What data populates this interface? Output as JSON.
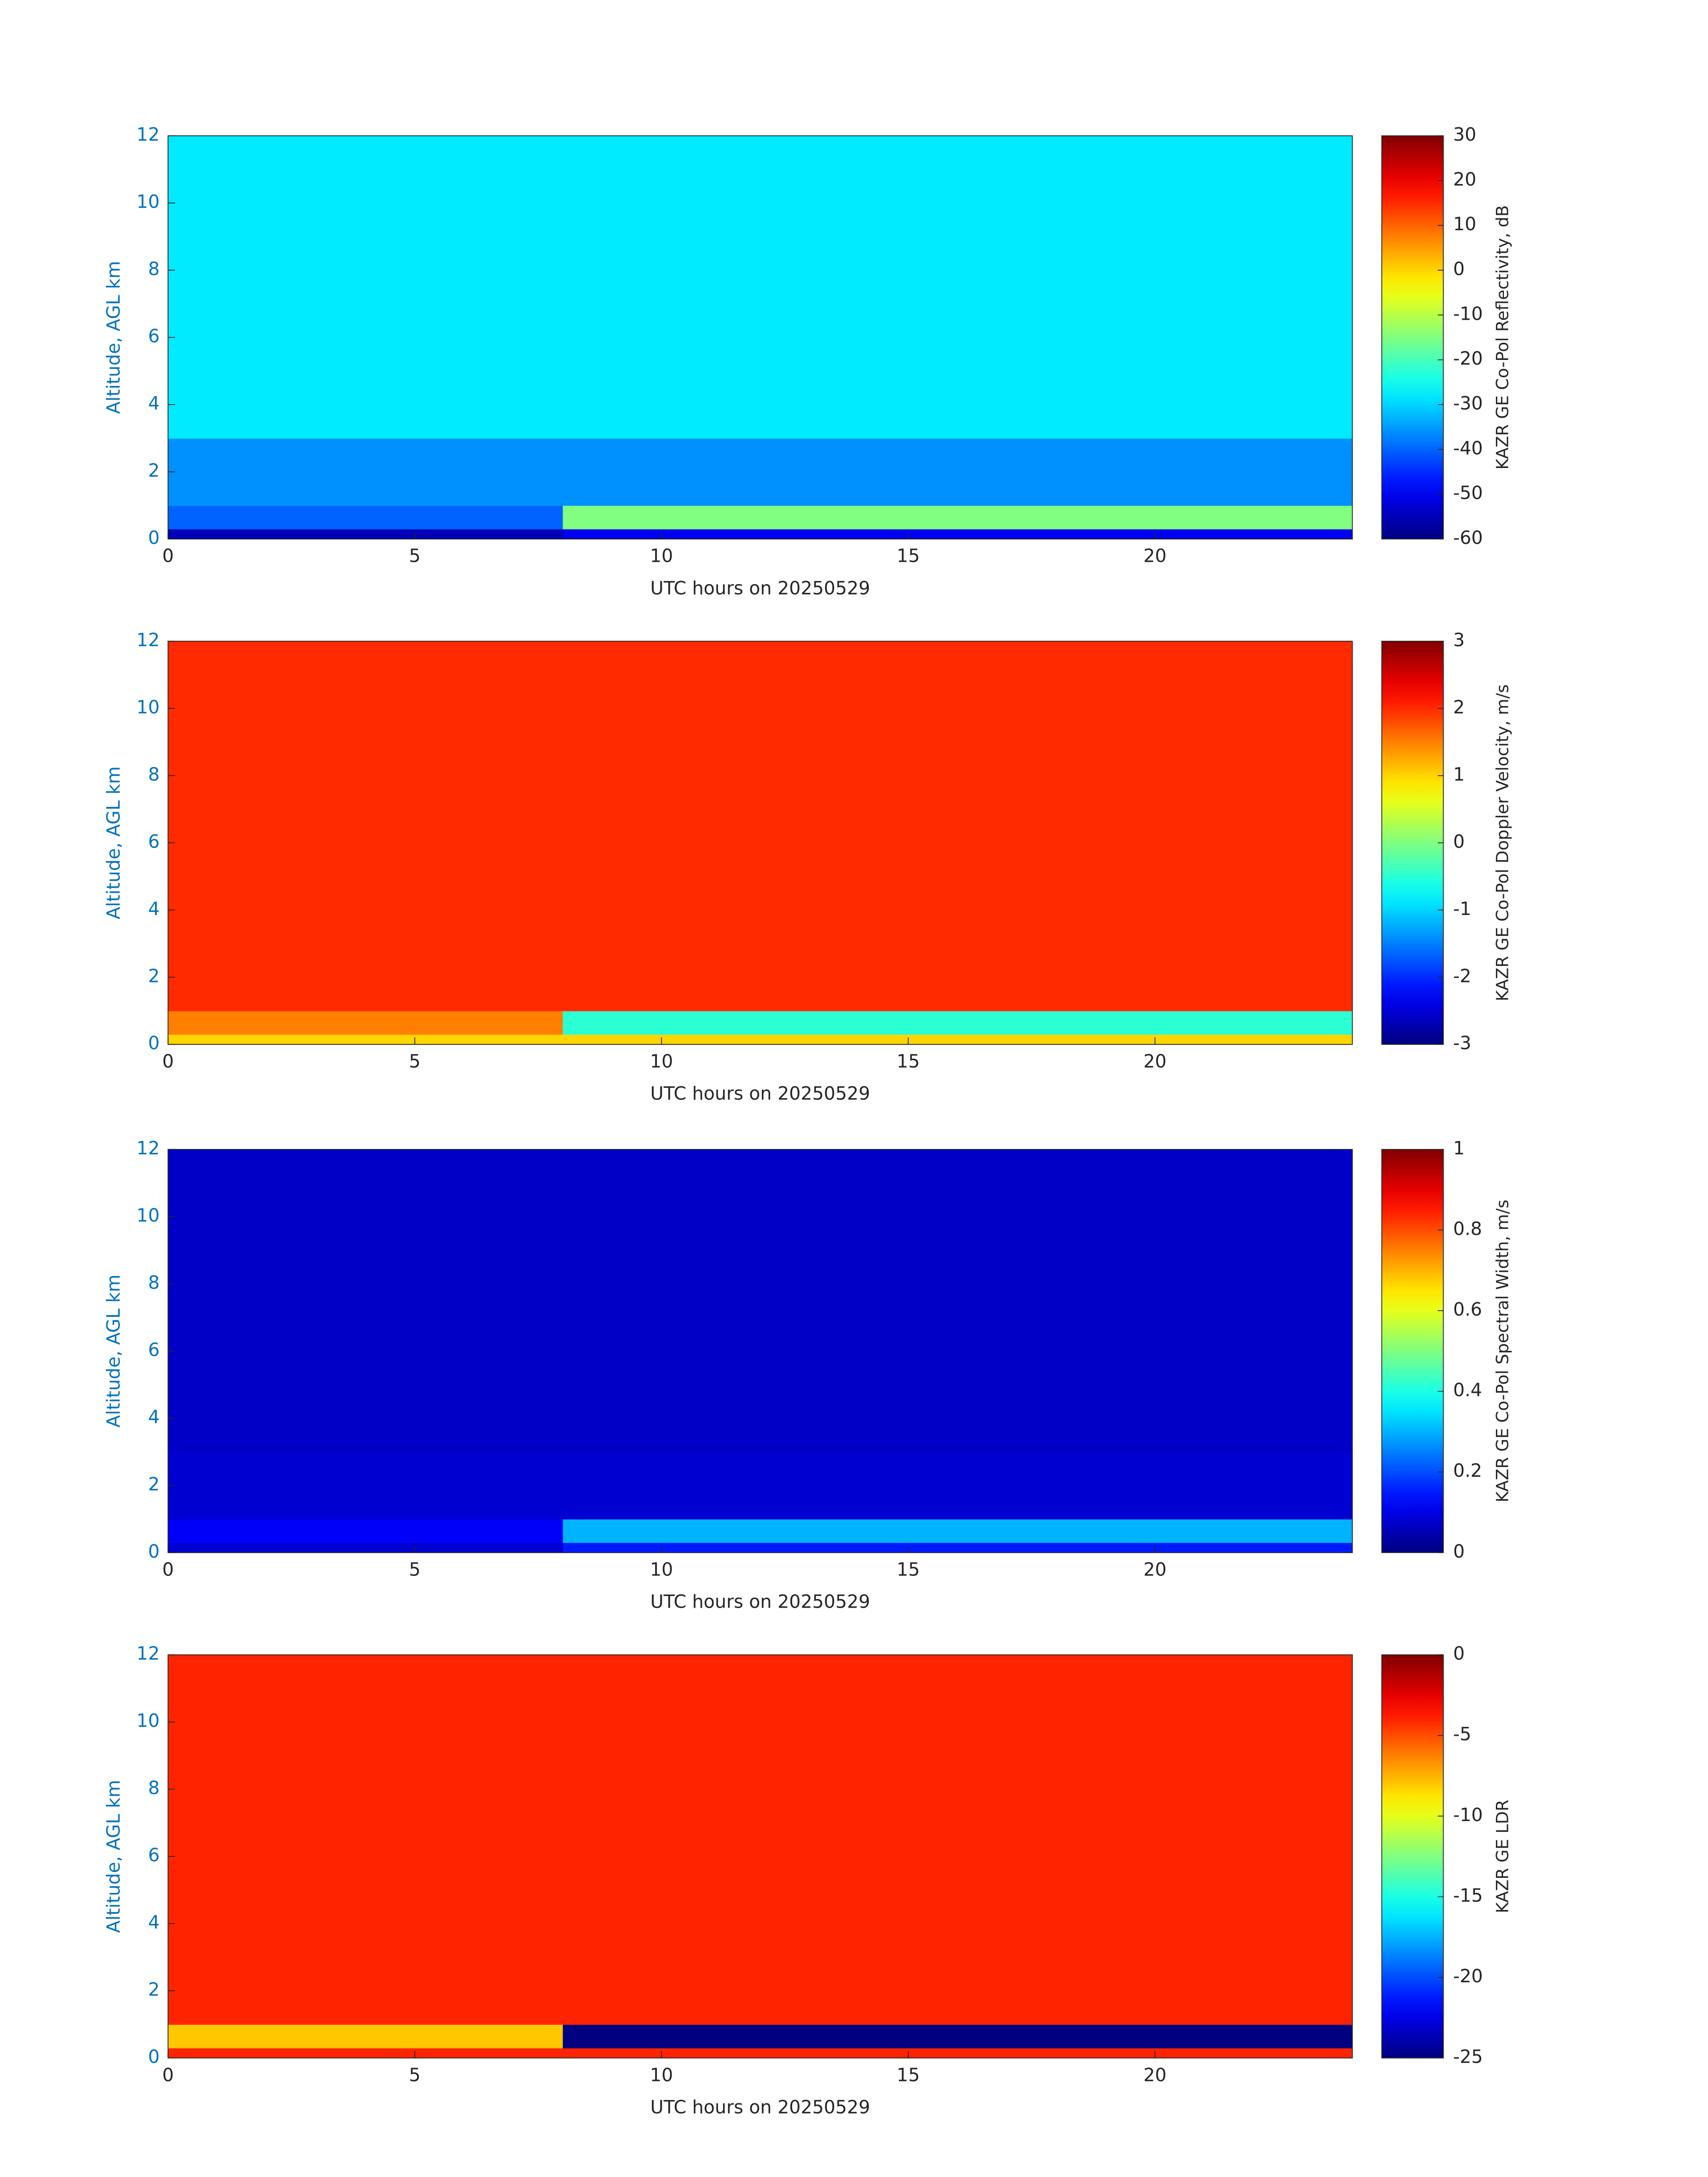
{
  "chart_data": [
    {
      "type": "heatmap",
      "xlabel": "UTC hours on 20250529",
      "ylabel": "Altitude, AGL km",
      "colorbar_label": "KAZR GE Co-Pol Reflectivity, dB",
      "colormap": "jet",
      "xlim": [
        0,
        24
      ],
      "xticks": [
        0,
        5,
        10,
        15,
        20
      ],
      "ylim": [
        0,
        12
      ],
      "yticks": [
        0,
        2,
        4,
        6,
        8,
        10,
        12
      ],
      "clim": [
        -60,
        30
      ],
      "cticks": [
        -60,
        -50,
        -40,
        -30,
        -20,
        -10,
        0,
        10,
        20,
        30
      ],
      "x_edges": [
        0,
        8,
        24
      ],
      "y_edges": [
        0,
        0.3,
        1,
        3,
        12
      ],
      "z": [
        [
          -55,
          -50
        ],
        [
          -40,
          -15
        ],
        [
          -36,
          -36
        ],
        [
          -28,
          -28
        ]
      ]
    },
    {
      "type": "heatmap",
      "xlabel": "UTC hours on 20250529",
      "ylabel": "Altitude, AGL km",
      "colorbar_label": "KAZR GE Co-Pol Doppler Velocity, m/s",
      "colormap": "jet",
      "xlim": [
        0,
        24
      ],
      "xticks": [
        0,
        5,
        10,
        15,
        20
      ],
      "ylim": [
        0,
        12
      ],
      "yticks": [
        0,
        2,
        4,
        6,
        8,
        10,
        12
      ],
      "clim": [
        -3,
        3
      ],
      "cticks": [
        -3,
        -2,
        -1,
        0,
        1,
        2,
        3
      ],
      "x_edges": [
        0,
        8,
        24
      ],
      "y_edges": [
        0,
        0.3,
        1,
        3,
        12
      ],
      "z": [
        [
          1,
          1
        ],
        [
          1.5,
          -0.5
        ],
        [
          2,
          2
        ],
        [
          2,
          2
        ]
      ]
    },
    {
      "type": "heatmap",
      "xlabel": "UTC hours on 20250529",
      "ylabel": "Altitude, AGL km",
      "colorbar_label": "KAZR GE Co-Pol Spectral Width, m/s",
      "colormap": "jet",
      "xlim": [
        0,
        24
      ],
      "xticks": [
        0,
        5,
        10,
        15,
        20
      ],
      "ylim": [
        0,
        12
      ],
      "yticks": [
        0,
        2,
        4,
        6,
        8,
        10,
        12
      ],
      "cticks": [
        0,
        0.2,
        0.4,
        0.6,
        0.8,
        1
      ],
      "clim": [
        0,
        1
      ],
      "x_edges": [
        0,
        8,
        24
      ],
      "y_edges": [
        0,
        0.3,
        1,
        3,
        12
      ],
      "z": [
        [
          0.08,
          0.15
        ],
        [
          0.12,
          0.3
        ],
        [
          0.08,
          0.08
        ],
        [
          0.07,
          0.07
        ]
      ]
    },
    {
      "type": "heatmap",
      "xlabel": "UTC hours on 20250529",
      "ylabel": "Altitude, AGL km",
      "colorbar_label": "KAZR GE LDR",
      "colormap": "jet",
      "xlim": [
        0,
        24
      ],
      "xticks": [
        0,
        5,
        10,
        15,
        20
      ],
      "ylim": [
        0,
        12
      ],
      "yticks": [
        0,
        2,
        4,
        6,
        8,
        10,
        12
      ],
      "clim": [
        -25,
        0
      ],
      "cticks": [
        -25,
        -20,
        -15,
        -10,
        -5,
        0
      ],
      "x_edges": [
        0,
        8,
        24
      ],
      "y_edges": [
        0,
        0.3,
        1,
        3,
        12
      ],
      "z": [
        [
          -4,
          -4
        ],
        [
          -8,
          -25
        ],
        [
          -4,
          -4
        ],
        [
          -4,
          -4
        ]
      ]
    }
  ]
}
